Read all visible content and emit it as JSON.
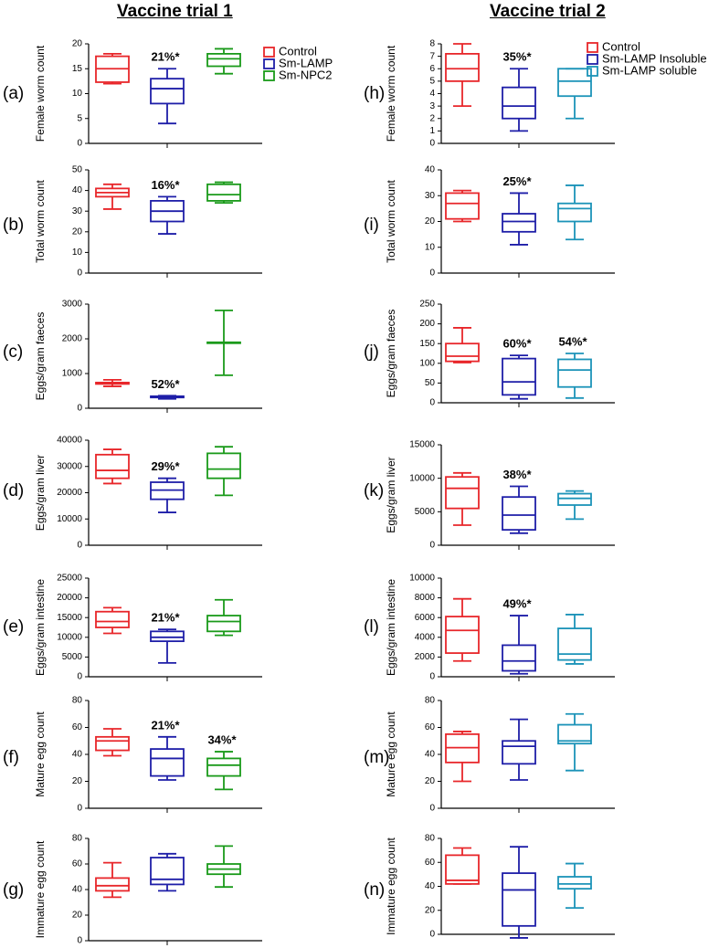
{
  "columns": [
    {
      "title": "Vaccine trial 1"
    },
    {
      "title": "Vaccine trial 2"
    }
  ],
  "colors": {
    "Control": "#e8262a",
    "Sm-LAMP": "#1e1ea8",
    "Sm-NPC2": "#1a9a1a",
    "Sm-LAMP Insoluble": "#1e1ea8",
    "Sm-LAMP soluble": "#1b93b8"
  },
  "legends": [
    {
      "column": 0,
      "entries": [
        "Control",
        "Sm-LAMP",
        "Sm-NPC2"
      ]
    },
    {
      "column": 1,
      "entries": [
        "Control",
        "Sm-LAMP Insoluble",
        "Sm-LAMP soluble"
      ]
    }
  ],
  "chart_data": [
    {
      "panel": "(a)",
      "type": "box",
      "ylabel": "Female worm count",
      "ylim": [
        0,
        20
      ],
      "yticks": [
        0,
        5,
        10,
        15,
        20
      ],
      "series": [
        {
          "name": "Control",
          "whislo": 12,
          "q1": 12.3,
          "med": 15,
          "q3": 17.5,
          "whishi": 18
        },
        {
          "name": "Sm-LAMP",
          "whislo": 4,
          "q1": 8,
          "med": 11,
          "q3": 13,
          "whishi": 15,
          "annotation": "21%*"
        },
        {
          "name": "Sm-NPC2",
          "whislo": 14,
          "q1": 15.5,
          "med": 17,
          "q3": 18,
          "whishi": 19
        }
      ]
    },
    {
      "panel": "(b)",
      "type": "box",
      "ylabel": "Total worm count",
      "ylim": [
        0,
        50
      ],
      "yticks": [
        0,
        10,
        20,
        30,
        40,
        50
      ],
      "series": [
        {
          "name": "Control",
          "whislo": 31,
          "q1": 37,
          "med": 39,
          "q3": 41,
          "whishi": 43
        },
        {
          "name": "Sm-LAMP",
          "whislo": 19,
          "q1": 25,
          "med": 30,
          "q3": 35,
          "whishi": 37,
          "annotation": "16%*"
        },
        {
          "name": "Sm-NPC2",
          "whislo": 34,
          "q1": 35,
          "med": 38,
          "q3": 43,
          "whishi": 44
        }
      ]
    },
    {
      "panel": "(c)",
      "type": "box",
      "ylabel": "Eggs/gram faeces",
      "ylim": [
        0,
        3000
      ],
      "yticks": [
        0,
        1000,
        2000,
        3000
      ],
      "series": [
        {
          "name": "Control",
          "whislo": 630,
          "q1": 700,
          "med": 720,
          "q3": 740,
          "whishi": 820
        },
        {
          "name": "Sm-LAMP",
          "whislo": 270,
          "q1": 310,
          "med": 330,
          "q3": 345,
          "whishi": 360,
          "annotation": "52%*"
        },
        {
          "name": "Sm-NPC2",
          "whislo": 950,
          "q1": 1880,
          "med": 1890,
          "q3": 1900,
          "whishi": 2820
        }
      ]
    },
    {
      "panel": "(d)",
      "type": "box",
      "ylabel": "Eggs/gram liver",
      "ylim": [
        0,
        40000
      ],
      "yticks": [
        0,
        10000,
        20000,
        30000,
        40000
      ],
      "series": [
        {
          "name": "Control",
          "whislo": 23500,
          "q1": 25500,
          "med": 28500,
          "q3": 34500,
          "whishi": 36500
        },
        {
          "name": "Sm-LAMP",
          "whislo": 12500,
          "q1": 17500,
          "med": 21000,
          "q3": 24000,
          "whishi": 25500,
          "annotation": "29%*"
        },
        {
          "name": "Sm-NPC2",
          "whislo": 19000,
          "q1": 25500,
          "med": 29000,
          "q3": 35000,
          "whishi": 37500
        }
      ]
    },
    {
      "panel": "(e)",
      "type": "box",
      "ylabel": "Eggs/gram intestine",
      "ylim": [
        0,
        25000
      ],
      "yticks": [
        0,
        5000,
        10000,
        15000,
        20000,
        25000
      ],
      "series": [
        {
          "name": "Control",
          "whislo": 11000,
          "q1": 12500,
          "med": 14000,
          "q3": 16500,
          "whishi": 17500
        },
        {
          "name": "Sm-LAMP",
          "whislo": 3500,
          "q1": 9000,
          "med": 10000,
          "q3": 11500,
          "whishi": 12000,
          "annotation": "21%*"
        },
        {
          "name": "Sm-NPC2",
          "whislo": 10500,
          "q1": 11500,
          "med": 14000,
          "q3": 15500,
          "whishi": 19500
        }
      ]
    },
    {
      "panel": "(f)",
      "type": "box",
      "ylabel": "Mature egg count",
      "ylim": [
        0,
        80
      ],
      "yticks": [
        0,
        20,
        40,
        60,
        80
      ],
      "series": [
        {
          "name": "Control",
          "whislo": 39,
          "q1": 43,
          "med": 50,
          "q3": 53,
          "whishi": 59
        },
        {
          "name": "Sm-LAMP",
          "whislo": 21,
          "q1": 24,
          "med": 37,
          "q3": 44,
          "whishi": 53,
          "annotation": "21%*"
        },
        {
          "name": "Sm-NPC2",
          "whislo": 14,
          "q1": 24,
          "med": 32,
          "q3": 37,
          "whishi": 42,
          "annotation": "34%*"
        }
      ]
    },
    {
      "panel": "(g)",
      "type": "box",
      "ylabel": "Immature egg count",
      "ylim": [
        0,
        80
      ],
      "yticks": [
        0,
        20,
        40,
        60,
        80
      ],
      "series": [
        {
          "name": "Control",
          "whislo": 34,
          "q1": 39,
          "med": 43,
          "q3": 49,
          "whishi": 61
        },
        {
          "name": "Sm-LAMP",
          "whislo": 39,
          "q1": 44,
          "med": 48,
          "q3": 65,
          "whishi": 68
        },
        {
          "name": "Sm-NPC2",
          "whislo": 42,
          "q1": 52,
          "med": 56,
          "q3": 60,
          "whishi": 74
        }
      ]
    },
    {
      "panel": "(h)",
      "type": "box",
      "ylabel": "Female worm count",
      "ylim": [
        0,
        8
      ],
      "yticks": [
        0,
        1,
        2,
        3,
        4,
        5,
        6,
        7,
        8
      ],
      "series": [
        {
          "name": "Control",
          "whislo": 3,
          "q1": 5,
          "med": 6,
          "q3": 7.2,
          "whishi": 8
        },
        {
          "name": "Sm-LAMP Insoluble",
          "whislo": 1,
          "q1": 2,
          "med": 3,
          "q3": 4.5,
          "whishi": 6,
          "annotation": "35%*"
        },
        {
          "name": "Sm-LAMP soluble",
          "whislo": 2,
          "q1": 3.8,
          "med": 5,
          "q3": 6,
          "whishi": 6
        }
      ]
    },
    {
      "panel": "(i)",
      "type": "box",
      "ylabel": "Total worm count",
      "ylim": [
        0,
        40
      ],
      "yticks": [
        0,
        10,
        20,
        30,
        40
      ],
      "series": [
        {
          "name": "Control",
          "whislo": 20,
          "q1": 21,
          "med": 27,
          "q3": 31,
          "whishi": 32
        },
        {
          "name": "Sm-LAMP Insoluble",
          "whislo": 11,
          "q1": 16,
          "med": 20,
          "q3": 23,
          "whishi": 31,
          "annotation": "25%*"
        },
        {
          "name": "Sm-LAMP soluble",
          "whislo": 13,
          "q1": 20,
          "med": 25,
          "q3": 27,
          "whishi": 34
        }
      ]
    },
    {
      "panel": "(j)",
      "type": "box",
      "ylabel": "Eggs/gram faeces",
      "ylim": [
        0,
        250
      ],
      "yticks": [
        0,
        50,
        100,
        150,
        200,
        250
      ],
      "series": [
        {
          "name": "Control",
          "whislo": 102,
          "q1": 105,
          "med": 118,
          "q3": 150,
          "whishi": 190
        },
        {
          "name": "Sm-LAMP Insoluble",
          "whislo": 10,
          "q1": 20,
          "med": 53,
          "q3": 112,
          "whishi": 120,
          "annotation": "60%*"
        },
        {
          "name": "Sm-LAMP soluble",
          "whislo": 12,
          "q1": 40,
          "med": 83,
          "q3": 110,
          "whishi": 125,
          "annotation": "54%*"
        }
      ]
    },
    {
      "panel": "(k)",
      "type": "box",
      "ylabel": "Eggs/gram liver",
      "ylim": [
        0,
        15000
      ],
      "yticks": [
        0,
        5000,
        10000,
        15000
      ],
      "series": [
        {
          "name": "Control",
          "whislo": 3000,
          "q1": 5500,
          "med": 8500,
          "q3": 10200,
          "whishi": 10800
        },
        {
          "name": "Sm-LAMP Insoluble",
          "whislo": 1800,
          "q1": 2300,
          "med": 4500,
          "q3": 7200,
          "whishi": 8800,
          "annotation": "38%*"
        },
        {
          "name": "Sm-LAMP soluble",
          "whislo": 3900,
          "q1": 6000,
          "med": 7000,
          "q3": 7700,
          "whishi": 8100
        }
      ]
    },
    {
      "panel": "(l)",
      "type": "box",
      "ylabel": "Eggs/gram intestine",
      "ylim": [
        0,
        10000
      ],
      "yticks": [
        0,
        2000,
        4000,
        6000,
        8000,
        10000
      ],
      "series": [
        {
          "name": "Control",
          "whislo": 1600,
          "q1": 2400,
          "med": 4700,
          "q3": 6100,
          "whishi": 7900
        },
        {
          "name": "Sm-LAMP Insoluble",
          "whislo": 300,
          "q1": 600,
          "med": 1600,
          "q3": 3200,
          "whishi": 6200,
          "annotation": "49%*"
        },
        {
          "name": "Sm-LAMP soluble",
          "whislo": 1300,
          "q1": 1700,
          "med": 2300,
          "q3": 4900,
          "whishi": 6300
        }
      ]
    },
    {
      "panel": "(m)",
      "type": "box",
      "ylabel": "Mature egg count",
      "ylim": [
        0,
        80
      ],
      "yticks": [
        0,
        20,
        40,
        60,
        80
      ],
      "series": [
        {
          "name": "Control",
          "whislo": 20,
          "q1": 34,
          "med": 45,
          "q3": 55,
          "whishi": 57
        },
        {
          "name": "Sm-LAMP Insoluble",
          "whislo": 21,
          "q1": 33,
          "med": 46,
          "q3": 50,
          "whishi": 66
        },
        {
          "name": "Sm-LAMP soluble",
          "whislo": 28,
          "q1": 48,
          "med": 50,
          "q3": 62,
          "whishi": 70
        }
      ]
    },
    {
      "panel": "(n)",
      "type": "box",
      "ylabel": "Immature egg count",
      "ylim": [
        0,
        80
      ],
      "yticks": [
        0,
        20,
        40,
        60,
        80
      ],
      "series": [
        {
          "name": "Control",
          "whislo": 42,
          "q1": 42,
          "med": 45,
          "q3": 66,
          "whishi": 72
        },
        {
          "name": "Sm-LAMP Insoluble",
          "whislo": -3,
          "q1": 7,
          "med": 37,
          "q3": 51,
          "whishi": 73
        },
        {
          "name": "Sm-LAMP soluble",
          "whislo": 22,
          "q1": 38,
          "med": 42,
          "q3": 48,
          "whishi": 59
        }
      ]
    }
  ]
}
